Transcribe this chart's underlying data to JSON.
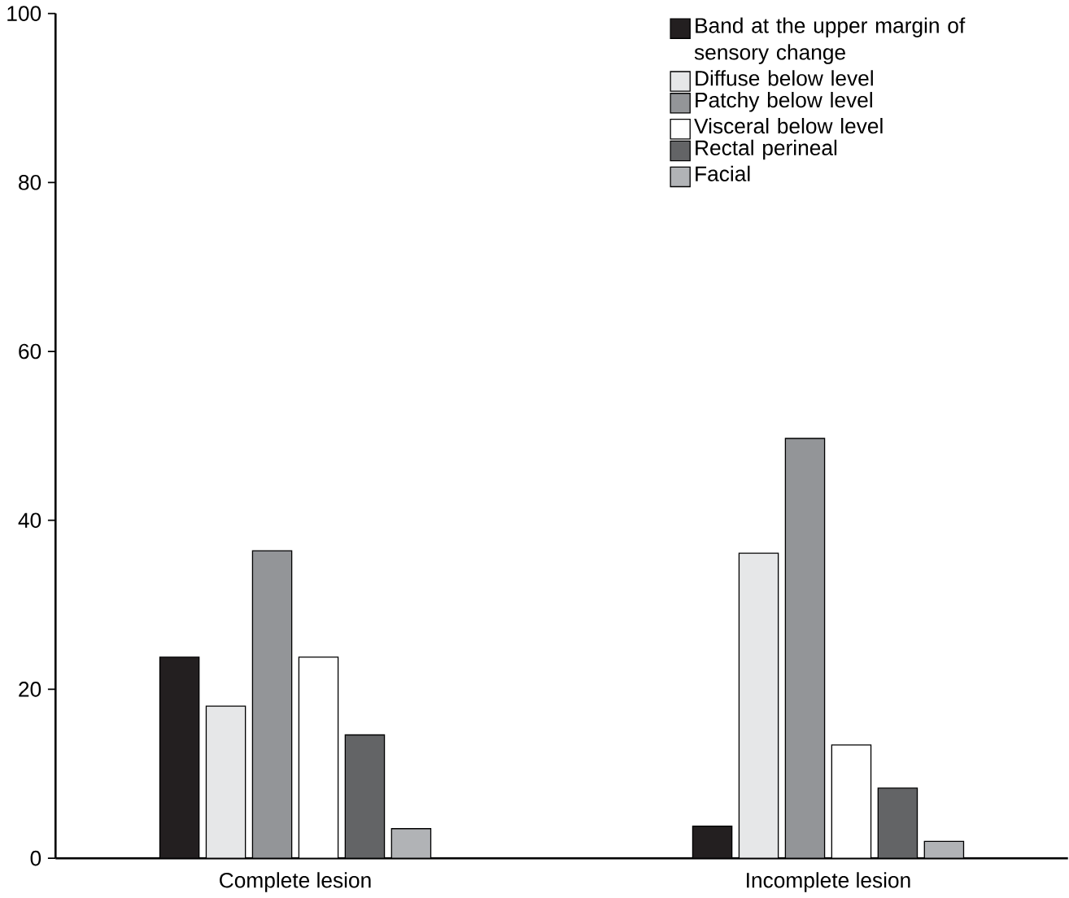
{
  "chart_data": {
    "type": "bar",
    "categories": [
      "Complete lesion",
      "Incomplete lesion"
    ],
    "series": [
      {
        "name": "Band at the upper margin of sensory change",
        "color": "#231f20",
        "values": [
          23.8,
          3.8
        ]
      },
      {
        "name": "Diffuse below level",
        "color": "#e6e7e8",
        "values": [
          18,
          36.1
        ]
      },
      {
        "name": "Patchy below level",
        "color": "#939598",
        "values": [
          36.4,
          49.7
        ]
      },
      {
        "name": "Visceral below level",
        "color": "#ffffff",
        "values": [
          23.8,
          13.4
        ]
      },
      {
        "name": "Rectal perineal",
        "color": "#636466",
        "values": [
          14.6,
          8.3
        ]
      },
      {
        "name": "Facial",
        "color": "#b1b3b6",
        "values": [
          3.5,
          2
        ]
      }
    ],
    "ylim": [
      0,
      100
    ],
    "yticks": [
      0,
      20,
      40,
      60,
      80,
      100
    ],
    "grid": false,
    "legend": "top right"
  }
}
